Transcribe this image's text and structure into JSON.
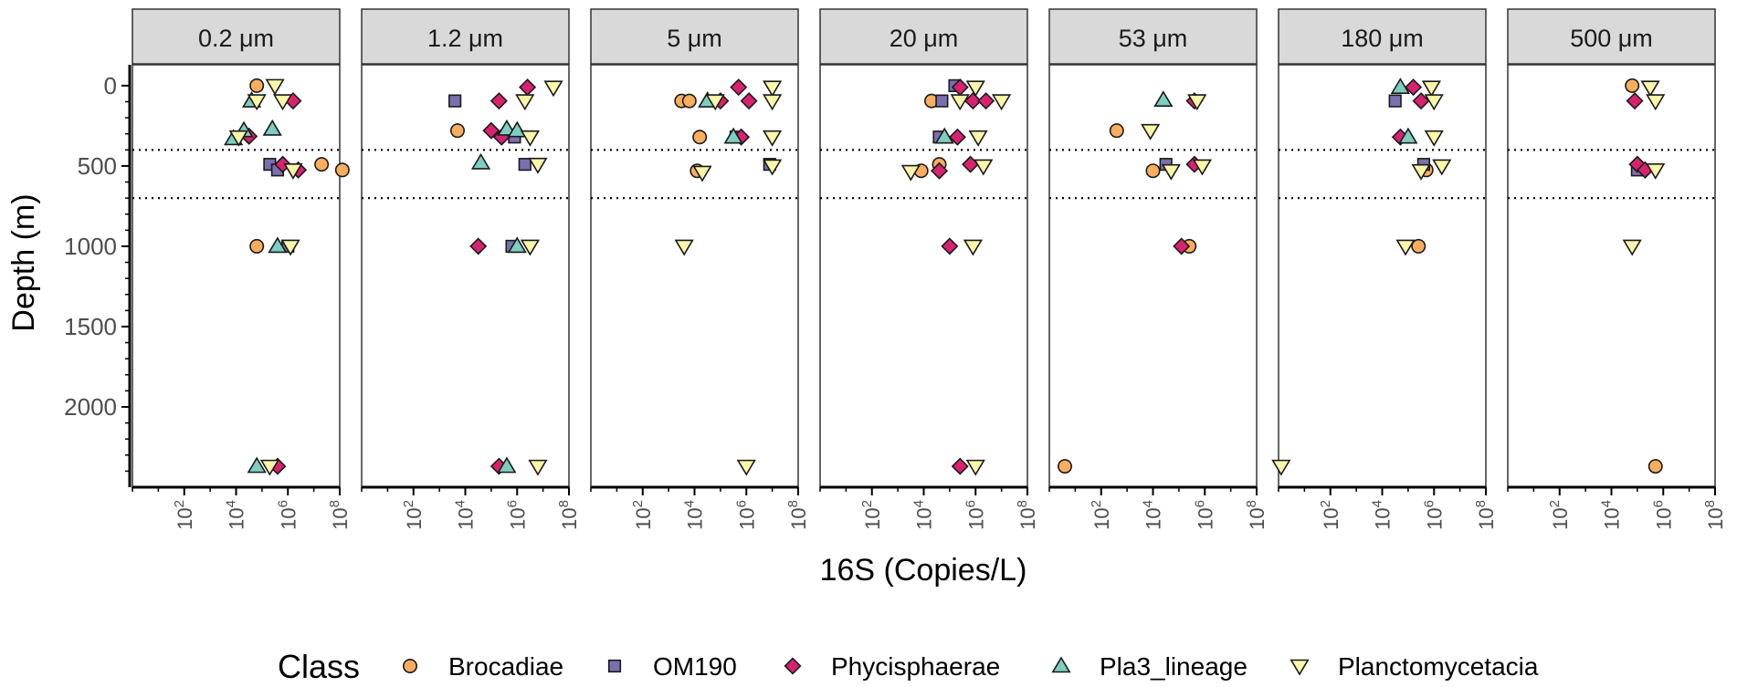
{
  "chart_data": {
    "type": "scatter",
    "facets": [
      {
        "label": "0.2 μm"
      },
      {
        "label": "1.2 μm"
      },
      {
        "label": "5 μm"
      },
      {
        "label": "20 μm"
      },
      {
        "label": "53 μm"
      },
      {
        "label": "180 μm"
      },
      {
        "label": "500 μm"
      }
    ],
    "xlabel": "16S (Copies/L)",
    "ylabel": "Depth (m)",
    "x_scale": "log10",
    "xlim_log10": [
      0,
      8
    ],
    "x_ticks": [
      {
        "base": "10",
        "exp": "2",
        "log": 2
      },
      {
        "base": "10",
        "exp": "4",
        "log": 4
      },
      {
        "base": "10",
        "exp": "6",
        "log": 6
      },
      {
        "base": "10",
        "exp": "8",
        "log": 8
      }
    ],
    "ylim": [
      2500,
      -130
    ],
    "y_ticks": [
      {
        "label": "0",
        "value": 0
      },
      {
        "label": "500",
        "value": 500
      },
      {
        "label": "1000",
        "value": 1000
      },
      {
        "label": "1500",
        "value": 1500
      },
      {
        "label": "2000",
        "value": 2000
      }
    ],
    "reference_lines_depth": [
      400,
      700
    ],
    "legend": {
      "title": "Class",
      "position": "bottom"
    },
    "series": [
      {
        "name": "Brocadiae",
        "shape": "circle",
        "color": "#F8AE5E",
        "points": [
          {
            "facet": 0,
            "x": 4.8,
            "y": 0
          },
          {
            "facet": 0,
            "x": 7.3,
            "y": 490
          },
          {
            "facet": 0,
            "x": 8.1,
            "y": 525
          },
          {
            "facet": 0,
            "x": 4.8,
            "y": 1000
          },
          {
            "facet": 1,
            "x": 3.7,
            "y": 280
          },
          {
            "facet": 2,
            "x": 3.5,
            "y": 95
          },
          {
            "facet": 2,
            "x": 3.8,
            "y": 95
          },
          {
            "facet": 2,
            "x": 4.2,
            "y": 320
          },
          {
            "facet": 2,
            "x": 4.1,
            "y": 530
          },
          {
            "facet": 3,
            "x": 4.3,
            "y": 95
          },
          {
            "facet": 3,
            "x": 3.9,
            "y": 530
          },
          {
            "facet": 3,
            "x": 4.6,
            "y": 490
          },
          {
            "facet": 4,
            "x": 2.6,
            "y": 280
          },
          {
            "facet": 4,
            "x": 4.0,
            "y": 530
          },
          {
            "facet": 4,
            "x": 5.4,
            "y": 1000
          },
          {
            "facet": 4,
            "x": 0.6,
            "y": 2370
          },
          {
            "facet": 5,
            "x": 5.7,
            "y": 525
          },
          {
            "facet": 5,
            "x": 5.4,
            "y": 1000
          },
          {
            "facet": 6,
            "x": 4.8,
            "y": 0
          },
          {
            "facet": 6,
            "x": 5.7,
            "y": 2370
          }
        ]
      },
      {
        "name": "OM190",
        "shape": "square",
        "color": "#7B6FB0",
        "points": [
          {
            "facet": 0,
            "x": 5.3,
            "y": 490
          },
          {
            "facet": 0,
            "x": 5.6,
            "y": 525
          },
          {
            "facet": 0,
            "x": 6.0,
            "y": 1000
          },
          {
            "facet": 1,
            "x": 3.6,
            "y": 95
          },
          {
            "facet": 1,
            "x": 5.9,
            "y": 320
          },
          {
            "facet": 1,
            "x": 6.3,
            "y": 490
          },
          {
            "facet": 1,
            "x": 5.8,
            "y": 1000
          },
          {
            "facet": 2,
            "x": 5.6,
            "y": 320
          },
          {
            "facet": 2,
            "x": 6.9,
            "y": 490
          },
          {
            "facet": 3,
            "x": 4.7,
            "y": 95
          },
          {
            "facet": 3,
            "x": 4.6,
            "y": 320
          },
          {
            "facet": 3,
            "x": 5.2,
            "y": 0
          },
          {
            "facet": 4,
            "x": 4.5,
            "y": 490
          },
          {
            "facet": 5,
            "x": 4.5,
            "y": 95
          },
          {
            "facet": 5,
            "x": 5.6,
            "y": 490
          },
          {
            "facet": 6,
            "x": 5.0,
            "y": 525
          }
        ]
      },
      {
        "name": "Phycisphaerae",
        "shape": "diamond",
        "color": "#D9226F",
        "points": [
          {
            "facet": 0,
            "x": 6.2,
            "y": 95
          },
          {
            "facet": 0,
            "x": 4.5,
            "y": 315
          },
          {
            "facet": 0,
            "x": 5.8,
            "y": 490
          },
          {
            "facet": 0,
            "x": 6.4,
            "y": 525
          },
          {
            "facet": 0,
            "x": 5.6,
            "y": 2370
          },
          {
            "facet": 1,
            "x": 6.4,
            "y": 10
          },
          {
            "facet": 1,
            "x": 5.3,
            "y": 95
          },
          {
            "facet": 1,
            "x": 5.0,
            "y": 280
          },
          {
            "facet": 1,
            "x": 5.4,
            "y": 320
          },
          {
            "facet": 1,
            "x": 4.5,
            "y": 1000
          },
          {
            "facet": 1,
            "x": 5.3,
            "y": 2370
          },
          {
            "facet": 2,
            "x": 5.7,
            "y": 10
          },
          {
            "facet": 2,
            "x": 5.0,
            "y": 95
          },
          {
            "facet": 2,
            "x": 6.1,
            "y": 95
          },
          {
            "facet": 2,
            "x": 5.8,
            "y": 320
          },
          {
            "facet": 3,
            "x": 5.4,
            "y": 10
          },
          {
            "facet": 3,
            "x": 5.9,
            "y": 95
          },
          {
            "facet": 3,
            "x": 6.4,
            "y": 95
          },
          {
            "facet": 3,
            "x": 5.3,
            "y": 320
          },
          {
            "facet": 3,
            "x": 4.6,
            "y": 530
          },
          {
            "facet": 3,
            "x": 5.8,
            "y": 490
          },
          {
            "facet": 3,
            "x": 5.0,
            "y": 1000
          },
          {
            "facet": 3,
            "x": 5.4,
            "y": 2370
          },
          {
            "facet": 4,
            "x": 5.6,
            "y": 95
          },
          {
            "facet": 4,
            "x": 5.6,
            "y": 490
          },
          {
            "facet": 4,
            "x": 5.1,
            "y": 1000
          },
          {
            "facet": 5,
            "x": 5.2,
            "y": 10
          },
          {
            "facet": 5,
            "x": 5.5,
            "y": 95
          },
          {
            "facet": 5,
            "x": 4.7,
            "y": 320
          },
          {
            "facet": 6,
            "x": 4.9,
            "y": 95
          },
          {
            "facet": 6,
            "x": 5.0,
            "y": 490
          },
          {
            "facet": 6,
            "x": 5.3,
            "y": 525
          }
        ]
      },
      {
        "name": "Pla3_lineage",
        "shape": "triangle-up",
        "color": "#7ECEC0",
        "points": [
          {
            "facet": 0,
            "x": 4.6,
            "y": 95
          },
          {
            "facet": 0,
            "x": 4.3,
            "y": 280
          },
          {
            "facet": 0,
            "x": 5.4,
            "y": 270
          },
          {
            "facet": 0,
            "x": 3.9,
            "y": 330
          },
          {
            "facet": 0,
            "x": 5.6,
            "y": 1000
          },
          {
            "facet": 0,
            "x": 4.8,
            "y": 2370
          },
          {
            "facet": 1,
            "x": 5.6,
            "y": 270
          },
          {
            "facet": 1,
            "x": 6.0,
            "y": 280
          },
          {
            "facet": 1,
            "x": 4.6,
            "y": 480
          },
          {
            "facet": 1,
            "x": 6.0,
            "y": 1000
          },
          {
            "facet": 1,
            "x": 5.6,
            "y": 2370
          },
          {
            "facet": 2,
            "x": 4.5,
            "y": 95
          },
          {
            "facet": 2,
            "x": 5.5,
            "y": 320
          },
          {
            "facet": 3,
            "x": 4.8,
            "y": 320
          },
          {
            "facet": 4,
            "x": 4.4,
            "y": 90
          },
          {
            "facet": 5,
            "x": 4.7,
            "y": 10
          },
          {
            "facet": 5,
            "x": 5.0,
            "y": 320
          }
        ]
      },
      {
        "name": "Planctomycetacia",
        "shape": "triangle-down",
        "color": "#FBF7A9",
        "points": [
          {
            "facet": 0,
            "x": 5.5,
            "y": 0
          },
          {
            "facet": 0,
            "x": 4.8,
            "y": 95
          },
          {
            "facet": 0,
            "x": 5.8,
            "y": 95
          },
          {
            "facet": 0,
            "x": 4.1,
            "y": 320
          },
          {
            "facet": 0,
            "x": 6.2,
            "y": 525
          },
          {
            "facet": 0,
            "x": 6.1,
            "y": 1000
          },
          {
            "facet": 0,
            "x": 5.3,
            "y": 2370
          },
          {
            "facet": 1,
            "x": 7.4,
            "y": 10
          },
          {
            "facet": 1,
            "x": 6.3,
            "y": 95
          },
          {
            "facet": 1,
            "x": 6.5,
            "y": 320
          },
          {
            "facet": 1,
            "x": 6.8,
            "y": 490
          },
          {
            "facet": 1,
            "x": 6.5,
            "y": 1000
          },
          {
            "facet": 1,
            "x": 6.8,
            "y": 2370
          },
          {
            "facet": 2,
            "x": 4.8,
            "y": 95
          },
          {
            "facet": 2,
            "x": 7.0,
            "y": 10
          },
          {
            "facet": 2,
            "x": 7.0,
            "y": 95
          },
          {
            "facet": 2,
            "x": 7.0,
            "y": 320
          },
          {
            "facet": 2,
            "x": 4.3,
            "y": 540
          },
          {
            "facet": 2,
            "x": 7.0,
            "y": 500
          },
          {
            "facet": 2,
            "x": 3.6,
            "y": 1000
          },
          {
            "facet": 2,
            "x": 6.0,
            "y": 2370
          },
          {
            "facet": 3,
            "x": 5.4,
            "y": 95
          },
          {
            "facet": 3,
            "x": 6.0,
            "y": 10
          },
          {
            "facet": 3,
            "x": 7.0,
            "y": 95
          },
          {
            "facet": 3,
            "x": 6.1,
            "y": 320
          },
          {
            "facet": 3,
            "x": 3.5,
            "y": 535
          },
          {
            "facet": 3,
            "x": 6.3,
            "y": 500
          },
          {
            "facet": 3,
            "x": 5.9,
            "y": 1000
          },
          {
            "facet": 3,
            "x": 6.0,
            "y": 2370
          },
          {
            "facet": 4,
            "x": 5.7,
            "y": 95
          },
          {
            "facet": 4,
            "x": 3.9,
            "y": 280
          },
          {
            "facet": 4,
            "x": 4.7,
            "y": 530
          },
          {
            "facet": 4,
            "x": 5.9,
            "y": 500
          },
          {
            "facet": 5,
            "x": 5.9,
            "y": 10
          },
          {
            "facet": 5,
            "x": 6.0,
            "y": 95
          },
          {
            "facet": 5,
            "x": 6.0,
            "y": 320
          },
          {
            "facet": 5,
            "x": 5.5,
            "y": 530
          },
          {
            "facet": 5,
            "x": 6.3,
            "y": 500
          },
          {
            "facet": 5,
            "x": 4.9,
            "y": 1000
          },
          {
            "facet": 5,
            "x": 0.1,
            "y": 2370
          },
          {
            "facet": 6,
            "x": 5.5,
            "y": 10
          },
          {
            "facet": 6,
            "x": 5.7,
            "y": 95
          },
          {
            "facet": 6,
            "x": 5.7,
            "y": 525
          },
          {
            "facet": 6,
            "x": 4.8,
            "y": 1000
          }
        ]
      }
    ]
  }
}
